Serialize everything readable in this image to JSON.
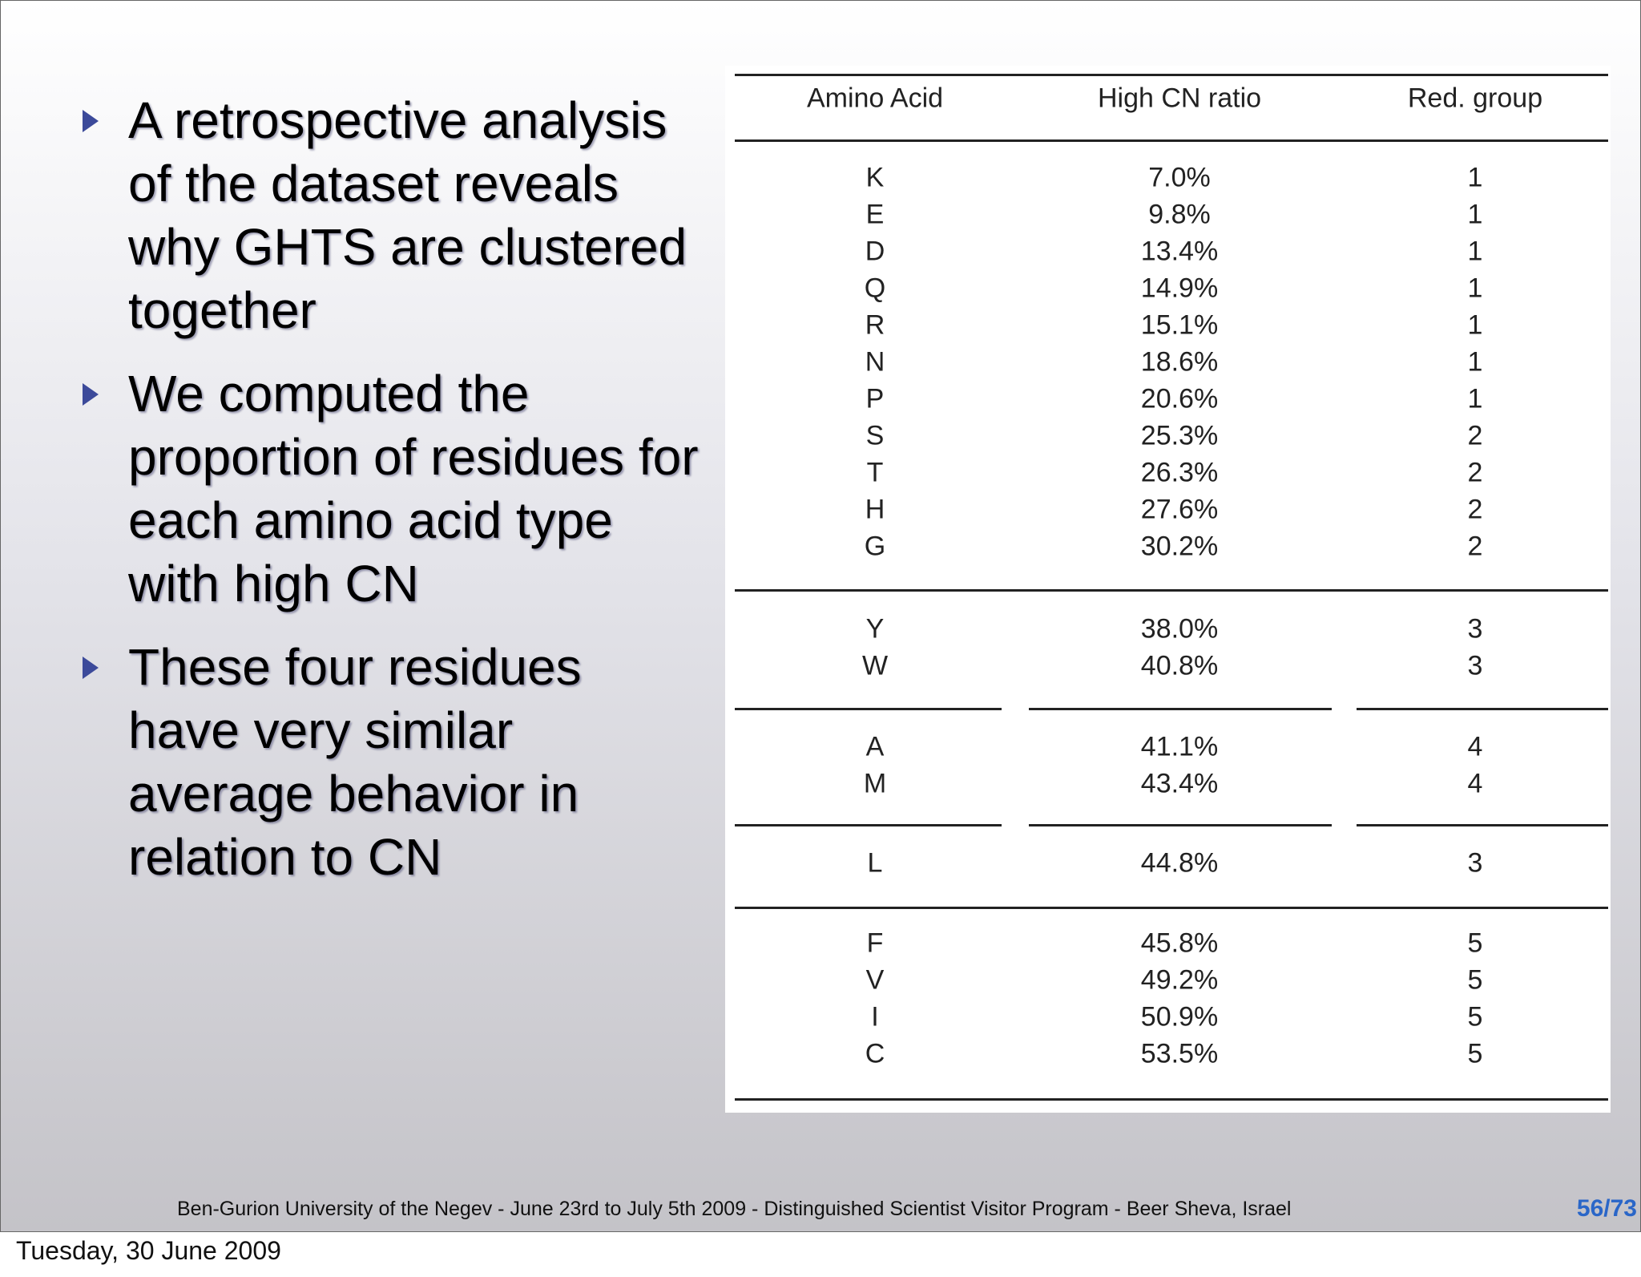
{
  "bullets": [
    "A retrospective analysis of the dataset reveals why GHTS are clustered together",
    "We computed the proportion of residues for each amino acid type with high CN",
    "These four residues have very similar average behavior in relation to CN"
  ],
  "table": {
    "header": [
      "Amino Acid",
      "High CN ratio",
      "Red. group"
    ],
    "groups": [
      {
        "rows": [
          [
            "K",
            "7.0%",
            "1"
          ],
          [
            "E",
            "9.8%",
            "1"
          ],
          [
            "D",
            "13.4%",
            "1"
          ],
          [
            "Q",
            "14.9%",
            "1"
          ],
          [
            "R",
            "15.1%",
            "1"
          ],
          [
            "N",
            "18.6%",
            "1"
          ],
          [
            "P",
            "20.6%",
            "1"
          ],
          [
            "S",
            "25.3%",
            "2"
          ],
          [
            "T",
            "26.3%",
            "2"
          ],
          [
            "H",
            "27.6%",
            "2"
          ],
          [
            "G",
            "30.2%",
            "2"
          ]
        ]
      },
      {
        "rows": [
          [
            "Y",
            "38.0%",
            "3"
          ],
          [
            "W",
            "40.8%",
            "3"
          ]
        ]
      },
      {
        "rows": [
          [
            "A",
            "41.1%",
            "4"
          ],
          [
            "M",
            "43.4%",
            "4"
          ]
        ]
      },
      {
        "rows": [
          [
            "L",
            "44.8%",
            "3"
          ]
        ]
      },
      {
        "rows": [
          [
            "F",
            "45.8%",
            "5"
          ],
          [
            "V",
            "49.2%",
            "5"
          ],
          [
            "I",
            "50.9%",
            "5"
          ],
          [
            "C",
            "53.5%",
            "5"
          ]
        ]
      }
    ]
  },
  "footer": "Ben-Gurion University of the Negev - June 23rd to July 5th 2009 -  Distinguished Scientist Visitor Program - Beer Sheva, Israel",
  "page_number": "56/73",
  "date": "Tuesday, 30 June 2009"
}
